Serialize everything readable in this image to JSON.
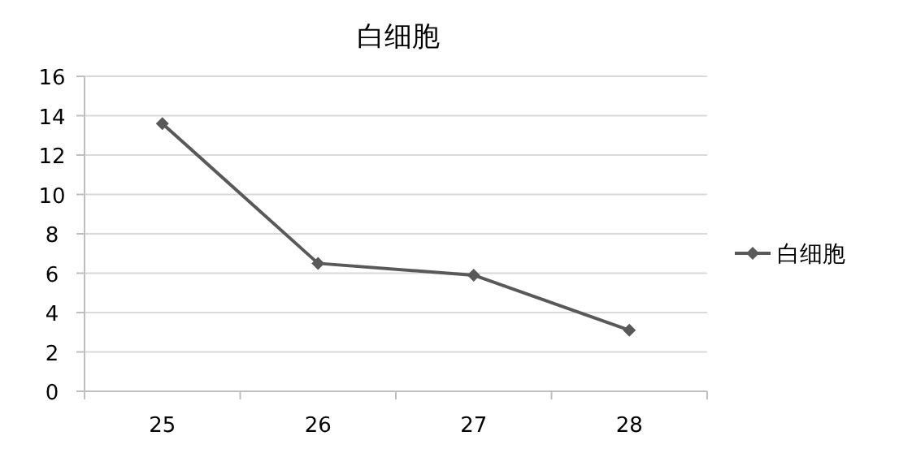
{
  "chart_data": {
    "type": "line",
    "title": "白细胞",
    "categories": [
      "25",
      "26",
      "27",
      "28"
    ],
    "series": [
      {
        "name": "白细胞",
        "color": "#595959",
        "values": [
          13.6,
          6.5,
          5.9,
          3.1
        ]
      }
    ],
    "ylim": [
      0,
      16
    ],
    "yticks": [
      0,
      2,
      4,
      6,
      8,
      10,
      12,
      14,
      16
    ],
    "grid": "y",
    "legend": "right",
    "marker": "diamond",
    "line_style": "solid"
  }
}
